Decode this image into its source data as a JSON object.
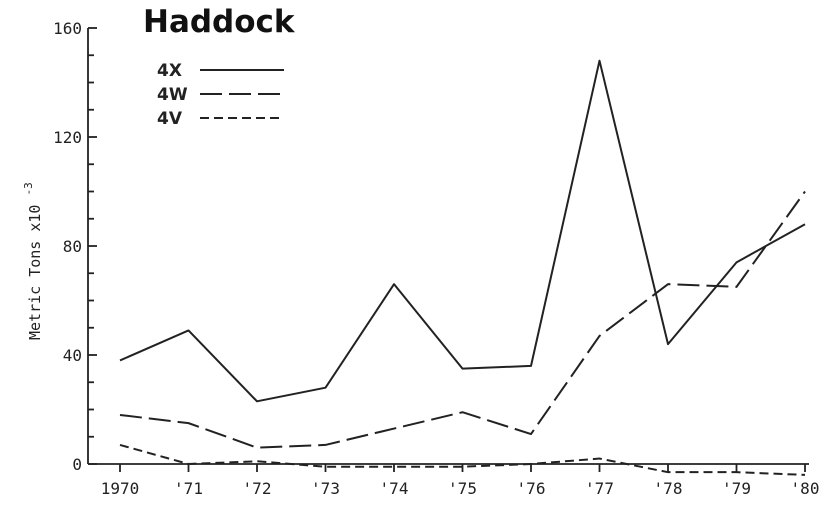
{
  "chart_data": {
    "type": "line",
    "title": "Haddock",
    "ylabel": "Metric Tons x10",
    "ylabel_exponent": "-3",
    "xlabel": "",
    "categories": [
      "1970",
      "'71",
      "'72",
      "'73",
      "'74",
      "'75",
      "'76",
      "'77",
      "'78",
      "'79",
      "'80"
    ],
    "yticks": [
      "0",
      "40",
      "80",
      "120",
      "160"
    ],
    "ylim": [
      0,
      160
    ],
    "legend_position": "top-left",
    "series": [
      {
        "name": "4X",
        "style": "solid",
        "values": [
          38,
          49,
          23,
          28,
          66,
          35,
          36,
          148,
          44,
          74,
          88
        ]
      },
      {
        "name": "4W",
        "style": "long-dash",
        "values": [
          18,
          15,
          6,
          7,
          13,
          19,
          11,
          47,
          66,
          65,
          100
        ]
      },
      {
        "name": "4V",
        "style": "short-dash",
        "values": [
          7,
          0,
          1,
          -1,
          -1,
          -1,
          0,
          2,
          -3,
          -3,
          -4
        ]
      }
    ],
    "colors": {
      "ink": "#222222",
      "background": "#ffffff"
    }
  }
}
